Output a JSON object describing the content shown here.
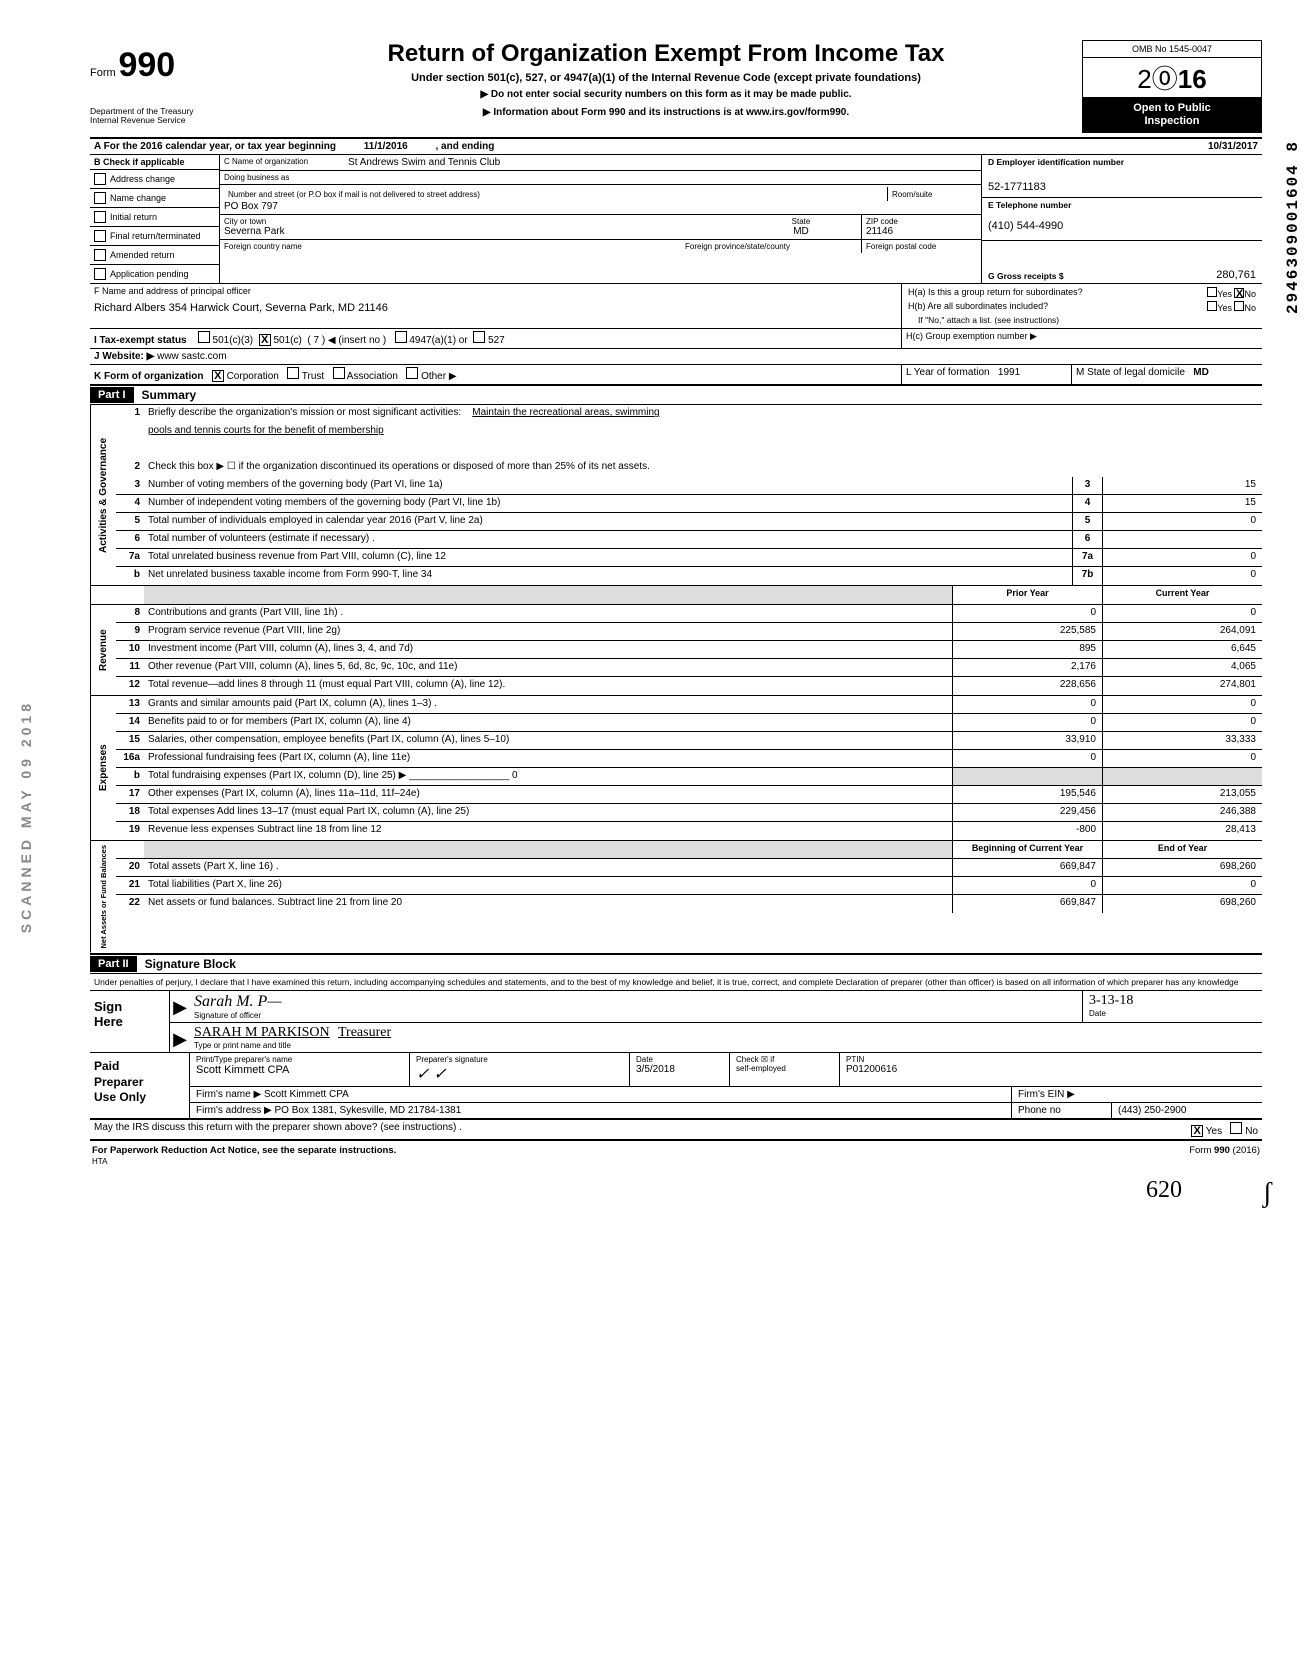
{
  "vertical_left": "SCANNED MAY 09 2018",
  "vertical_right": "2946309001604    8",
  "form": {
    "word": "Form",
    "num": "990"
  },
  "title": "Return of Organization Exempt From Income Tax",
  "subtitle": "Under section 501(c), 527, or 4947(a)(1) of the Internal Revenue Code (except private foundations)",
  "sub2": "▶   Do not enter social security numbers on this form as it may be made public.",
  "sub3": "▶   Information about Form 990 and its instructions is at www.irs.gov/form990.",
  "dept1": "Department of the Treasury",
  "dept2": "Internal Revenue Service",
  "omb": "OMB No 1545-0047",
  "year_open": "2",
  "year_circle": "⓪",
  "year_bold": "16",
  "open_pub1": "Open to Public",
  "open_pub2": "Inspection",
  "rowA": {
    "label": "A  For the 2016 calendar year, or tax year beginning",
    "begin": "11/1/2016",
    "mid": ", and ending",
    "end": "10/31/2017"
  },
  "colB": {
    "head": "B  Check if applicable",
    "items": [
      "Address change",
      "Name change",
      "Initial return",
      "Final return/terminated",
      "Amended return",
      "Application pending"
    ]
  },
  "colC": {
    "name_lbl": "C  Name of organization",
    "name": "St Andrews Swim and Tennis Club",
    "dba_lbl": "Doing business as",
    "addr_lbl": "Number and street (or P.O  box if mail is not delivered to street address)",
    "room_lbl": "Room/suite",
    "addr": "PO Box 797",
    "city_lbl": "City or town",
    "state_lbl": "State",
    "zip_lbl": "ZIP code",
    "city": "Severna Park",
    "state": "MD",
    "zip": "21146",
    "foreign_lbl": "Foreign country name",
    "fprov_lbl": "Foreign province/state/county",
    "fpost_lbl": "Foreign postal code"
  },
  "colD": {
    "ein_lbl": "D   Employer identification number",
    "ein": "52-1771183",
    "tel_lbl": "E   Telephone number",
    "tel": "(410) 544-4990",
    "gross_lbl": "G   Gross receipts $",
    "gross": "280,761"
  },
  "rowF": {
    "lbl": "F  Name and address of principal officer",
    "val": "Richard Albers 354 Harwick Court, Severna Park, MD  21146"
  },
  "rowH": {
    "ha": "H(a) Is this a group return for subordinates?",
    "ha_yes": "Yes",
    "ha_no": "No",
    "hb": "H(b) Are all subordinates included?",
    "hb_yes": "Yes",
    "hb_no": "No",
    "hnote": "If \"No,\" attach a list. (see instructions)",
    "hc": "H(c) Group exemption number ▶"
  },
  "rowI": {
    "lbl": "I   Tax-exempt status",
    "o1": "501(c)(3)",
    "o2": "501(c)",
    "paren": "(    7    ) ◀ (insert no )",
    "o3": "4947(a)(1) or",
    "o4": "527"
  },
  "rowJ": {
    "lbl": "J  Website: ▶",
    "val": "www sastc.com"
  },
  "rowK": {
    "lbl": "K  Form of organization",
    "o1": "Corporation",
    "o2": "Trust",
    "o3": "Association",
    "o4": "Other ▶",
    "L_lbl": "L Year of formation",
    "L_val": "1991",
    "M_lbl": "M State of legal domicile",
    "M_val": "MD"
  },
  "part1": {
    "hdr": "Part I",
    "title": "Summary"
  },
  "sections": {
    "gov": {
      "label": "Activities & Governance",
      "rows": [
        {
          "n": "1",
          "t": "Briefly describe the organization's mission or most significant activities:",
          "tail": "Maintain the recreational areas, swimming"
        },
        {
          "t2": "pools and tennis courts for the benefit of membership"
        },
        {
          "n": "2",
          "t": "Check this box  ▶ ☐  if the organization discontinued its operations or disposed of more than 25% of its net assets."
        },
        {
          "n": "3",
          "t": "Number of voting members of the governing body (Part VI, line 1a)",
          "box": "3",
          "v": "15"
        },
        {
          "n": "4",
          "t": "Number of independent voting members of the governing body (Part VI, line 1b)",
          "box": "4",
          "v": "15"
        },
        {
          "n": "5",
          "t": "Total number of individuals employed in calendar year 2016 (Part V, line 2a)",
          "box": "5",
          "v": "0"
        },
        {
          "n": "6",
          "t": "Total number of volunteers (estimate if necessary) .",
          "box": "6",
          "v": ""
        },
        {
          "n": "7a",
          "t": "Total unrelated business revenue from Part VIII, column (C), line 12",
          "box": "7a",
          "v": "0"
        },
        {
          "n": "b",
          "t": "Net unrelated business taxable income from Form 990-T, line 34",
          "box": "7b",
          "v": "0"
        }
      ]
    },
    "yearhdr": {
      "prior": "Prior Year",
      "curr": "Current Year"
    },
    "rev": {
      "label": "Revenue",
      "rows": [
        {
          "n": "8",
          "t": "Contributions and grants (Part VIII, line 1h) .",
          "p": "0",
          "c": "0"
        },
        {
          "n": "9",
          "t": "Program service revenue (Part VIII, line 2g)",
          "p": "225,585",
          "c": "264,091"
        },
        {
          "n": "10",
          "t": "Investment income (Part VIII, column (A), lines 3, 4, and 7d)",
          "p": "895",
          "c": "6,645"
        },
        {
          "n": "11",
          "t": "Other revenue (Part VIII, column (A), lines 5, 6d, 8c, 9c, 10c, and 11e)",
          "p": "2,176",
          "c": "4,065"
        },
        {
          "n": "12",
          "t": "Total revenue—add lines 8 through 11 (must equal Part VIII, column (A), line 12).",
          "p": "228,656",
          "c": "274,801"
        }
      ]
    },
    "exp": {
      "label": "Expenses",
      "rows": [
        {
          "n": "13",
          "t": "Grants and similar amounts paid (Part IX, column (A), lines 1–3) .",
          "p": "0",
          "c": "0"
        },
        {
          "n": "14",
          "t": "Benefits paid to or for members (Part IX, column (A), line 4)",
          "p": "0",
          "c": "0"
        },
        {
          "n": "15",
          "t": "Salaries, other compensation, employee benefits (Part IX, column (A), lines 5–10)",
          "p": "33,910",
          "c": "33,333"
        },
        {
          "n": "16a",
          "t": "Professional fundraising fees (Part IX, column (A), line 11e)",
          "p": "0",
          "c": "0"
        },
        {
          "n": "b",
          "t": "Total fundraising expenses (Part IX, column (D), line 25)  ▶ __________________ 0",
          "shade": true
        },
        {
          "n": "17",
          "t": "Other expenses (Part IX, column (A), lines 11a–11d, 11f–24e)",
          "p": "195,546",
          "c": "213,055"
        },
        {
          "n": "18",
          "t": "Total expenses  Add lines 13–17 (must equal Part IX, column (A), line 25)",
          "p": "229,456",
          "c": "246,388"
        },
        {
          "n": "19",
          "t": "Revenue less expenses  Subtract line 18 from line 12",
          "p": "-800",
          "c": "28,413"
        }
      ]
    },
    "na": {
      "label": "Net Assets or\nFund Balances",
      "hdr": {
        "beg": "Beginning of Current Year",
        "end": "End of Year"
      },
      "rows": [
        {
          "n": "20",
          "t": "Total assets (Part X, line 16) .",
          "p": "669,847",
          "c": "698,260"
        },
        {
          "n": "21",
          "t": "Total liabilities (Part X, line 26)",
          "p": "0",
          "c": "0"
        },
        {
          "n": "22",
          "t": "Net assets or fund balances. Subtract line 21 from line 20",
          "p": "669,847",
          "c": "698,260"
        }
      ]
    }
  },
  "part2": {
    "hdr": "Part II",
    "title": "Signature Block"
  },
  "sig_text": "Under penalties of perjury, I declare that I have examined this return, including accompanying schedules and statements, and to the best of my knowledge and belief, it is true, correct, and complete  Declaration of preparer (other than officer) is based on all information of which preparer has any knowledge",
  "sign": {
    "here": "Sign\nHere",
    "sig_lbl": "Signature of officer",
    "date_lbl": "Date",
    "date_val": "3-13-18",
    "name": "SARAH  M  PARKISON",
    "title": "Treasurer",
    "type_lbl": "Type or print name and title"
  },
  "prep": {
    "left": "Paid\nPreparer\nUse Only",
    "h1": "Print/Type preparer's name",
    "h2": "Preparer's signature",
    "h3": "Date",
    "h4": "Check ☒ if\nself-employed",
    "h5": "PTIN",
    "name": "Scott Kimmett CPA",
    "date": "3/5/2018",
    "ptin": "P01200616",
    "firm_lbl": "Firm's name   ▶",
    "firm": "Scott Kimmett CPA",
    "ein_lbl": "Firm's EIN ▶",
    "addr_lbl": "Firm's address ▶",
    "addr": "PO Box 1381, Sykesville, MD 21784-1381",
    "phone_lbl": "Phone no",
    "phone": "(443) 250-2900"
  },
  "irs_q": "May the IRS discuss this return with the preparer shown above? (see instructions) .",
  "irs_yes": "Yes",
  "irs_no": "No",
  "foot_left": "For Paperwork Reduction Act Notice, see the separate instructions.",
  "foot_hta": "HTA",
  "foot_right": "Form 990 (2016)",
  "hand_bottom": "620"
}
